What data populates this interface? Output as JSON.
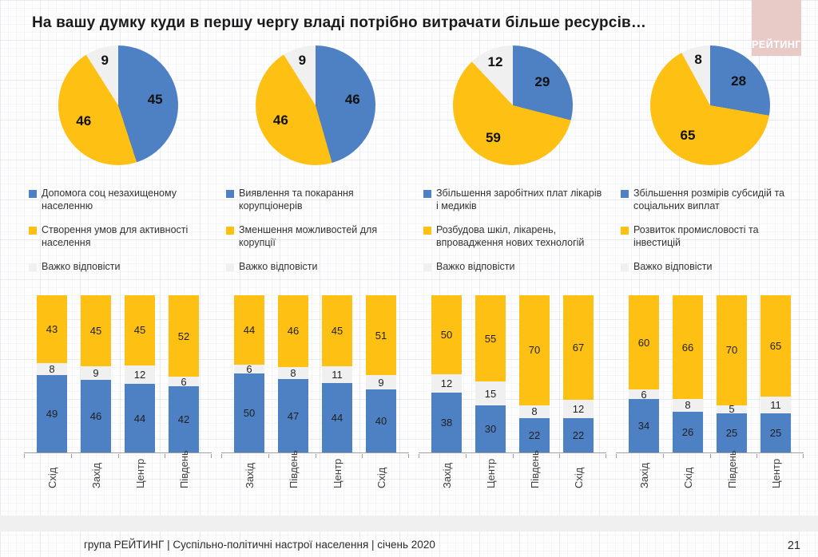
{
  "title": "На вашу думку куди в першу чергу владі потрібно витрачати більше ресурсів…",
  "logo_text": "РЕЙТИНГ",
  "footer": {
    "source": "група РЕЙТИНГ | Суспільно-політичні настрої населення  | січень  2020",
    "page": "21"
  },
  "colors": {
    "blue": "#4e81c4",
    "yellow": "#fdc013",
    "gray": "#f0f0f0",
    "logo_bg": "#e8cbc7",
    "axis": "#a0a0a0"
  },
  "chart_data": [
    {
      "pie": {
        "type": "pie",
        "slices": [
          {
            "label": "Допомога соц незахищеному населенню",
            "color": "blue",
            "value": 45
          },
          {
            "label": "Створення умов для активності населення",
            "color": "yellow",
            "value": 46
          },
          {
            "label": "Важко відповісти",
            "color": "gray",
            "value": 9
          }
        ]
      },
      "bar": {
        "type": "bar",
        "stacked": true,
        "unit": "%",
        "ylim": [
          0,
          100
        ],
        "categories": [
          "Схід",
          "Захід",
          "Центр",
          "Південь"
        ],
        "series": [
          {
            "name": "Допомога соц незахищеному населенню",
            "color": "blue",
            "values": [
              49,
              46,
              44,
              42
            ]
          },
          {
            "name": "Важко відповісти",
            "color": "gray",
            "values": [
              8,
              9,
              12,
              6
            ]
          },
          {
            "name": "Створення умов для активності населення",
            "color": "yellow",
            "values": [
              43,
              45,
              45,
              52
            ]
          }
        ]
      }
    },
    {
      "pie": {
        "type": "pie",
        "slices": [
          {
            "label": "Виявлення та покарання корупціонерів",
            "color": "blue",
            "value": 46
          },
          {
            "label": "Зменшення можливостей для корупції",
            "color": "yellow",
            "value": 46
          },
          {
            "label": "Важко відповісти",
            "color": "gray",
            "value": 9
          }
        ]
      },
      "bar": {
        "type": "bar",
        "stacked": true,
        "unit": "%",
        "ylim": [
          0,
          100
        ],
        "categories": [
          "Захід",
          "Південь",
          "Центр",
          "Схід"
        ],
        "series": [
          {
            "name": "Виявлення та покарання корупціонерів",
            "color": "blue",
            "values": [
              50,
              47,
              44,
              40
            ]
          },
          {
            "name": "Важко відповісти",
            "color": "gray",
            "values": [
              6,
              8,
              11,
              9
            ]
          },
          {
            "name": "Зменшення можливостей для корупції",
            "color": "yellow",
            "values": [
              44,
              46,
              45,
              51
            ]
          }
        ]
      }
    },
    {
      "pie": {
        "type": "pie",
        "slices": [
          {
            "label": "Збільшення заробітних плат лікарів і медиків",
            "color": "blue",
            "value": 29
          },
          {
            "label": "Розбудова шкіл, лікарень, впровадження нових технологій",
            "color": "yellow",
            "value": 59
          },
          {
            "label": "Важко відповісти",
            "color": "gray",
            "value": 12
          }
        ]
      },
      "bar": {
        "type": "bar",
        "stacked": true,
        "unit": "%",
        "ylim": [
          0,
          100
        ],
        "categories": [
          "Захід",
          "Центр",
          "Південь",
          "Схід"
        ],
        "series": [
          {
            "name": "Збільшення заробітних плат лікарів і медиків",
            "color": "blue",
            "values": [
              38,
              30,
              22,
              22
            ]
          },
          {
            "name": "Важко відповісти",
            "color": "gray",
            "values": [
              12,
              15,
              8,
              12
            ]
          },
          {
            "name": "Розбудова шкіл, лікарень, впровадження нових технологій",
            "color": "yellow",
            "values": [
              50,
              55,
              70,
              67
            ]
          }
        ]
      }
    },
    {
      "pie": {
        "type": "pie",
        "slices": [
          {
            "label": "Збільшення розмірів субсидій та соціальних виплат",
            "color": "blue",
            "value": 28
          },
          {
            "label": "Розвиток промисловості та інвестицій",
            "color": "yellow",
            "value": 65
          },
          {
            "label": "Важко відповісти",
            "color": "gray",
            "value": 8
          }
        ]
      },
      "bar": {
        "type": "bar",
        "stacked": true,
        "unit": "%",
        "ylim": [
          0,
          100
        ],
        "categories": [
          "Захід",
          "Схід",
          "Південь",
          "Центр"
        ],
        "series": [
          {
            "name": "Збільшення розмірів субсидій та соціальних виплат",
            "color": "blue",
            "values": [
              34,
              26,
              25,
              25
            ]
          },
          {
            "name": "Важко відповісти",
            "color": "gray",
            "values": [
              6,
              8,
              5,
              11
            ]
          },
          {
            "name": "Розвиток промисловості та інвестицій",
            "color": "yellow",
            "values": [
              60,
              66,
              70,
              65
            ]
          }
        ]
      }
    }
  ]
}
